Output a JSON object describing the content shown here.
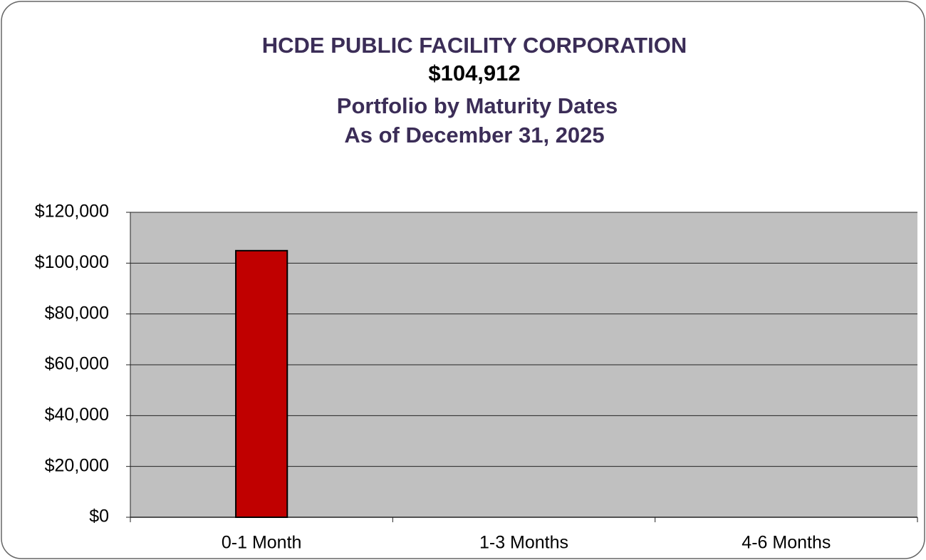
{
  "chart_data": {
    "type": "bar",
    "title_lines": [
      "HCDE PUBLIC FACILITY CORPORATION",
      "$104,912",
      "Portfolio by Maturity Dates",
      "As of  December 31, 2025"
    ],
    "categories": [
      "0-1 Month",
      "1-3 Months",
      "4-6 Months"
    ],
    "values": [
      104912,
      0,
      0
    ],
    "color": "#c00000",
    "plot_background": "#c0c0c0",
    "ylim": [
      0,
      120000
    ],
    "yticks": [
      {
        "value": 0,
        "label": "$0"
      },
      {
        "value": 20000,
        "label": "$20,000"
      },
      {
        "value": 40000,
        "label": "$40,000"
      },
      {
        "value": 60000,
        "label": "$60,000"
      },
      {
        "value": 80000,
        "label": "$80,000"
      },
      {
        "value": 100000,
        "label": "$100,000"
      },
      {
        "value": 120000,
        "label": "$120,000"
      }
    ],
    "grid": true
  }
}
